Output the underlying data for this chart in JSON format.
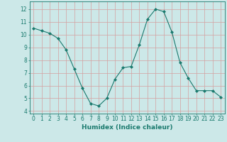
{
  "x": [
    0,
    1,
    2,
    3,
    4,
    5,
    6,
    7,
    8,
    9,
    10,
    11,
    12,
    13,
    14,
    15,
    16,
    17,
    18,
    19,
    20,
    21,
    22,
    23
  ],
  "y": [
    10.5,
    10.3,
    10.1,
    9.7,
    8.8,
    7.3,
    5.8,
    4.6,
    4.4,
    5.0,
    6.5,
    7.4,
    7.5,
    9.2,
    11.2,
    12.0,
    11.8,
    10.2,
    7.8,
    6.6,
    5.6,
    5.6,
    5.6,
    5.1
  ],
  "xlabel": "Humidex (Indice chaleur)",
  "xlim": [
    -0.5,
    23.5
  ],
  "ylim": [
    3.8,
    12.6
  ],
  "yticks": [
    4,
    5,
    6,
    7,
    8,
    9,
    10,
    11,
    12
  ],
  "xticks": [
    0,
    1,
    2,
    3,
    4,
    5,
    6,
    7,
    8,
    9,
    10,
    11,
    12,
    13,
    14,
    15,
    16,
    17,
    18,
    19,
    20,
    21,
    22,
    23
  ],
  "line_color": "#1a7a6e",
  "marker": "D",
  "marker_size": 2.0,
  "bg_color": "#cce8e8",
  "grid_color": "#d4a0a0",
  "label_fontsize": 6.5,
  "tick_fontsize": 5.5
}
